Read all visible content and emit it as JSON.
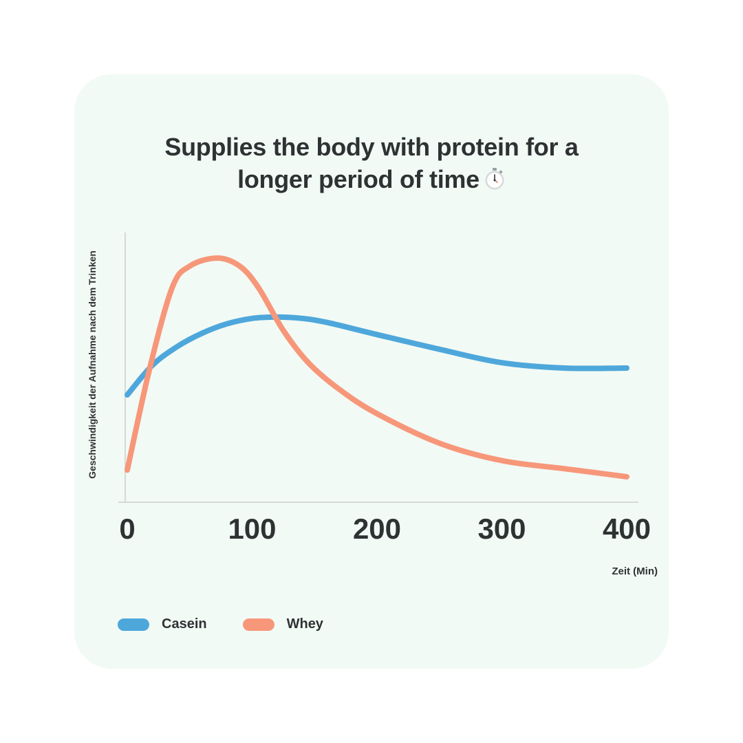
{
  "chart_data": {
    "type": "line",
    "title_line1": "Supplies the body with protein for a",
    "title_line2": "longer period of time",
    "ylabel": "Geschwindigkeit der Aufnahme nach dem Trinken",
    "xlabel": "Zeit (Min)",
    "xlim": [
      0,
      400
    ],
    "ylim": [
      0,
      100
    ],
    "x_ticks": [
      "0",
      "100",
      "200",
      "300",
      "400"
    ],
    "grid": false,
    "legend_position": "bottom-left",
    "series": [
      {
        "name": "Casein",
        "color": "#4ea7db",
        "x": [
          0,
          20,
          40,
          60,
          80,
          100,
          120,
          140,
          160,
          200,
          250,
          300,
          350,
          400
        ],
        "y": [
          40,
          51,
          58,
          63,
          66.5,
          68.5,
          69,
          68.5,
          67,
          62.5,
          57,
          52,
          50,
          50
        ]
      },
      {
        "name": "Whey",
        "color": "#f7977a",
        "x": [
          0,
          18,
          36,
          50,
          72,
          90,
          105,
          125,
          145,
          170,
          200,
          250,
          300,
          350,
          400
        ],
        "y": [
          12,
          50,
          80,
          88,
          91,
          88,
          80,
          64,
          52,
          42,
          33,
          22,
          15.5,
          12.5,
          9.5
        ]
      }
    ]
  }
}
